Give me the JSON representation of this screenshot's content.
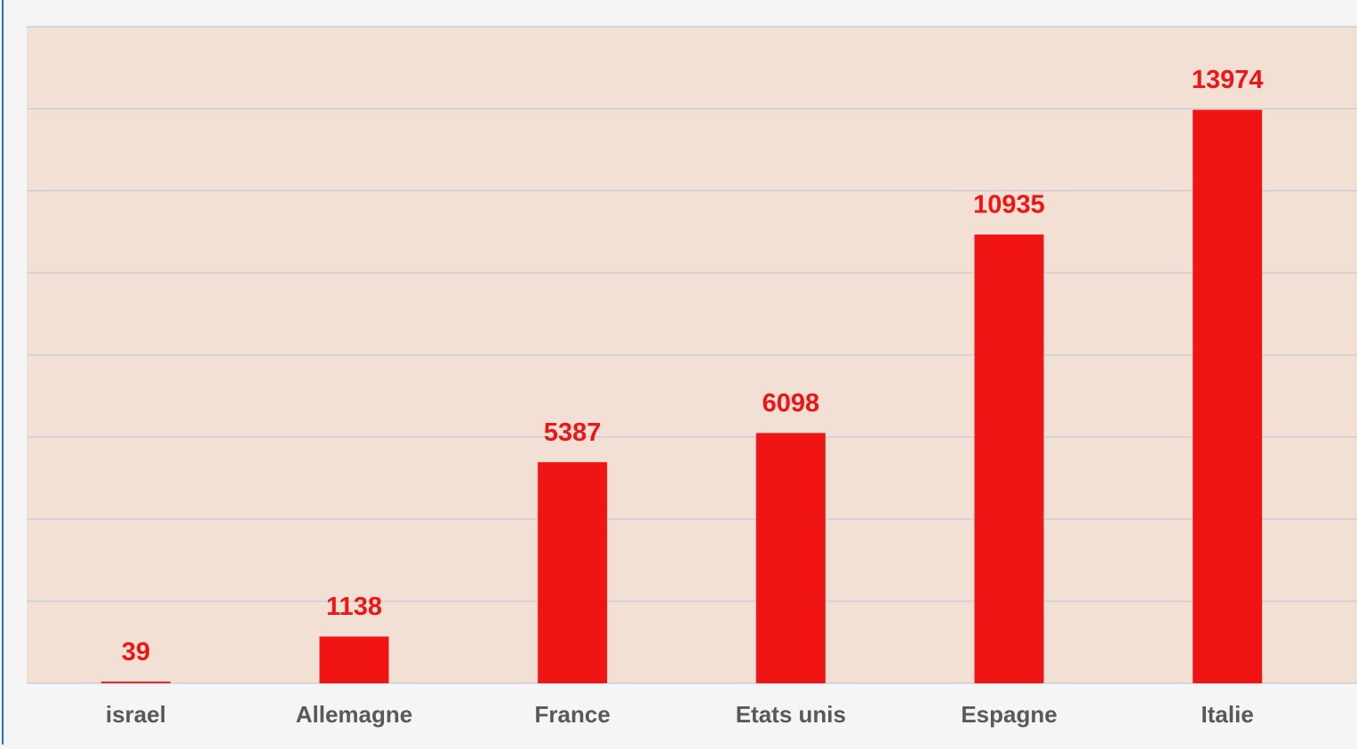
{
  "chart_data": {
    "type": "bar",
    "categories": [
      "israel",
      "Allemagne",
      "France",
      "Etats unis",
      "Espagne",
      "Italie"
    ],
    "values": [
      39,
      1138,
      5387,
      6098,
      10935,
      13974
    ],
    "color": "#f01414",
    "ylim": [
      0,
      16000
    ],
    "yticks": [
      0,
      2000,
      4000,
      6000,
      8000,
      10000,
      12000,
      14000,
      16000
    ],
    "grid": true
  }
}
